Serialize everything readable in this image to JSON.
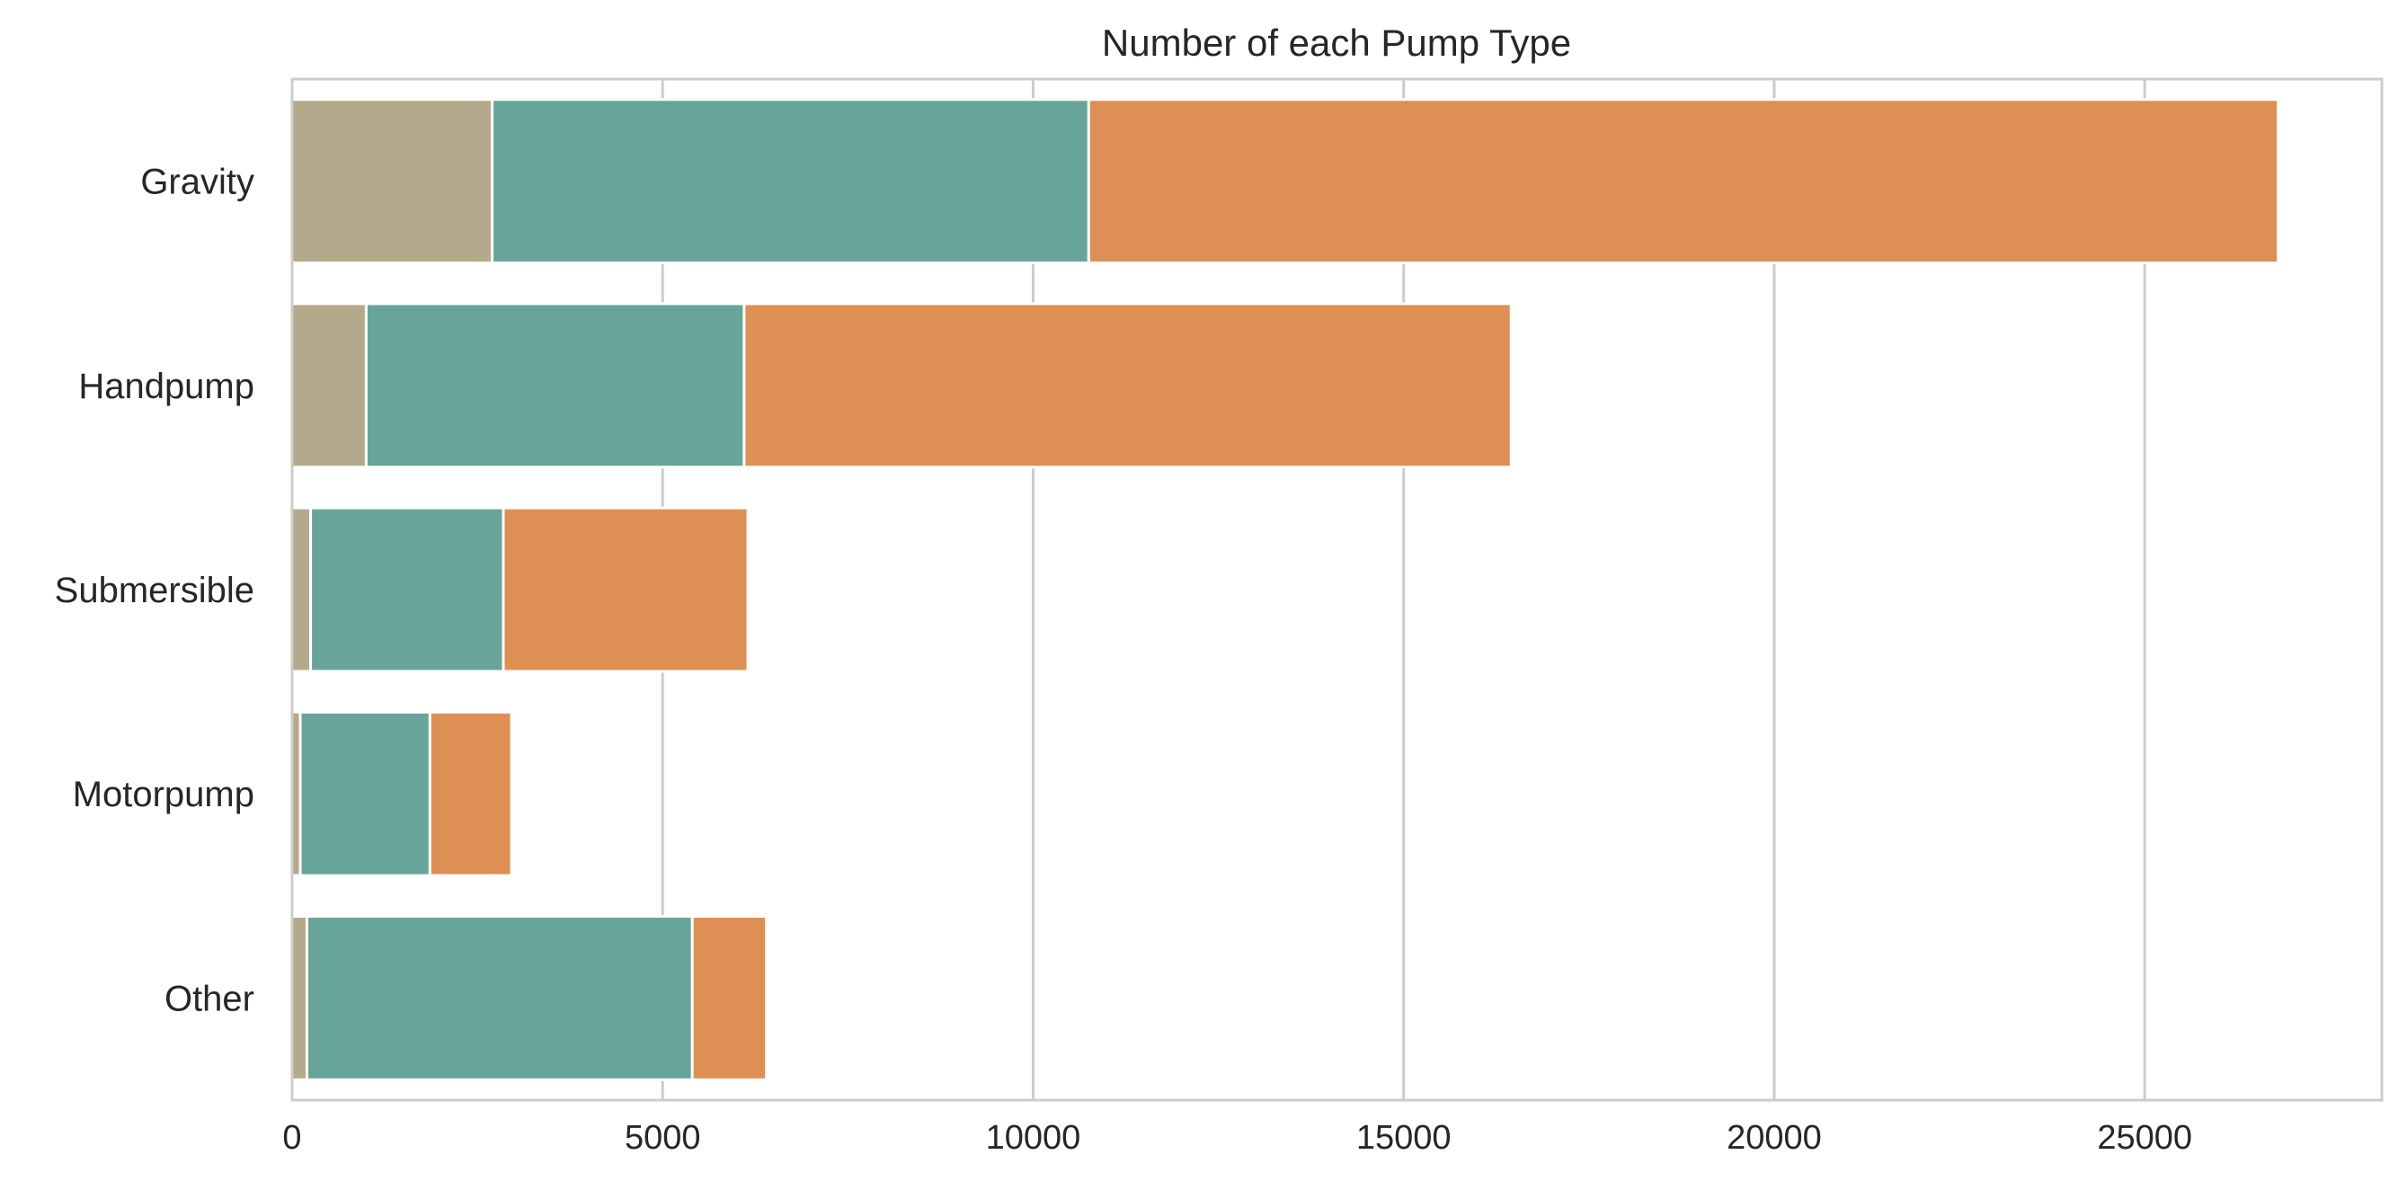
{
  "chart_data": {
    "type": "bar",
    "orientation": "horizontal",
    "stacked": true,
    "title": "Number of each Pump Type",
    "xlabel": "",
    "ylabel": "",
    "categories": [
      "Gravity",
      "Handpump",
      "Submersible",
      "Motorpump",
      "Other"
    ],
    "series": [
      {
        "color": "#b5a98b",
        "values": [
          2700,
          1000,
          250,
          110,
          200
        ]
      },
      {
        "color": "#67a59a",
        "values": [
          8050,
          5100,
          2600,
          1750,
          5200
        ]
      },
      {
        "color": "#de8f53",
        "values": [
          16050,
          10350,
          3300,
          1100,
          1000
        ]
      }
    ],
    "xlim": [
      0,
      28200
    ],
    "xticks": [
      0,
      5000,
      10000,
      15000,
      20000,
      25000
    ],
    "xtick_labels": [
      "0",
      "5000",
      "10000",
      "15000",
      "20000",
      "25000"
    ],
    "grid": true,
    "legend": "none"
  }
}
